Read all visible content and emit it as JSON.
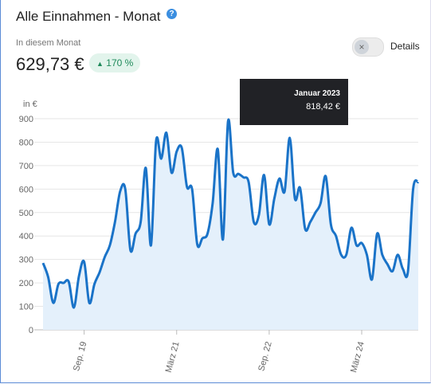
{
  "widget": {
    "title": "Alle Einnahmen - Monat",
    "period_label": "In diesem Monat",
    "current_value": "629,73 €",
    "change": "170 %",
    "toggle_label": "Details",
    "tooltip": {
      "date": "Januar 2023",
      "value": "818,42 €"
    }
  },
  "chart_data": {
    "type": "line",
    "y_label": "in €",
    "categories": [
      null,
      null,
      null,
      null,
      null,
      null,
      null,
      null,
      "Sep. 19",
      null,
      null,
      null,
      null,
      null,
      null,
      null,
      null,
      null,
      null,
      null,
      null,
      null,
      null,
      null,
      null,
      null,
      "März 21",
      null,
      null,
      null,
      null,
      null,
      null,
      null,
      null,
      null,
      null,
      null,
      null,
      null,
      null,
      null,
      null,
      null,
      "Sep. 22",
      null,
      null,
      null,
      null,
      null,
      null,
      null,
      null,
      null,
      null,
      null,
      null,
      null,
      null,
      null,
      null,
      null,
      "März 24",
      null,
      null,
      null,
      null,
      null,
      null,
      null,
      null,
      null,
      null,
      null
    ],
    "series": [
      {
        "name": "Einnahmen",
        "color": "#1a73c8",
        "values": [
          285,
          225,
          115,
          195,
          200,
          205,
          95,
          230,
          290,
          115,
          195,
          245,
          310,
          360,
          460,
          590,
          600,
          340,
          410,
          460,
          690,
          360,
          805,
          730,
          840,
          670,
          760,
          775,
          610,
          600,
          365,
          390,
          410,
          540,
          770,
          385,
          890,
          670,
          665,
          650,
          630,
          460,
          490,
          660,
          450,
          560,
          645,
          590,
          818,
          560,
          605,
          430,
          460,
          500,
          540,
          655,
          450,
          400,
          320,
          320,
          435,
          360,
          370,
          320,
          215,
          410,
          320,
          280,
          250,
          320,
          260,
          250,
          600,
          630
        ]
      }
    ],
    "ylim": [
      0,
      900
    ],
    "yticks": [
      0,
      100,
      200,
      300,
      400,
      500,
      600,
      700,
      800,
      900
    ],
    "grid": true
  }
}
